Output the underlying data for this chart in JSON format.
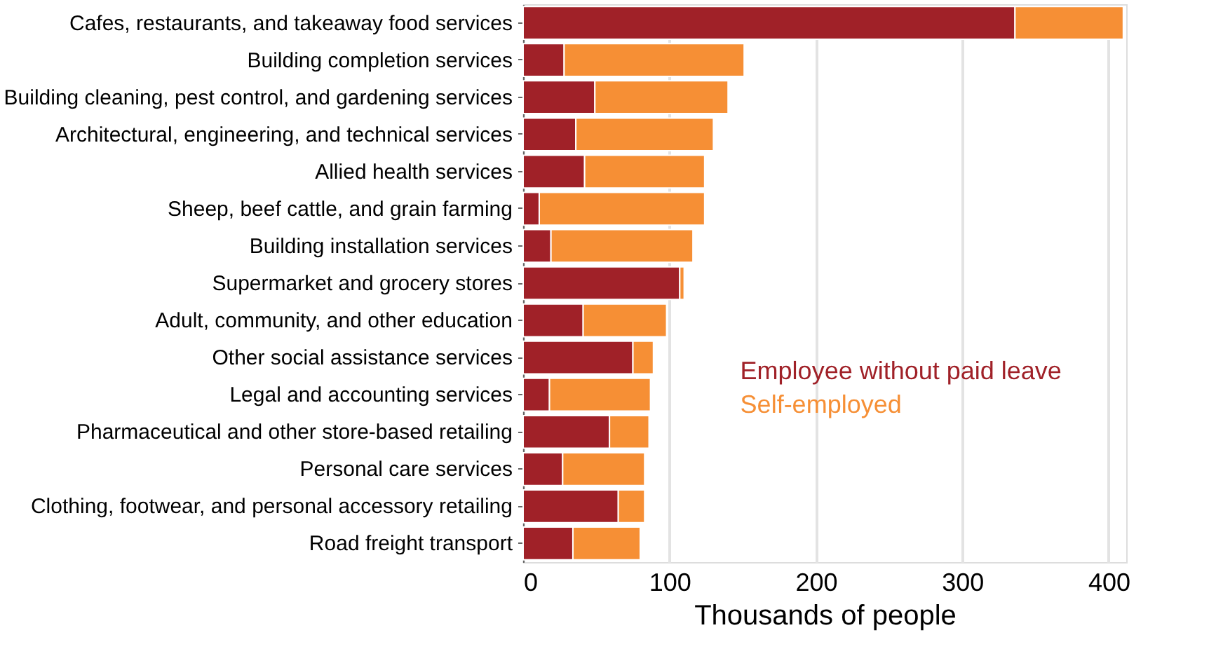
{
  "chart_data": {
    "type": "bar",
    "orientation": "horizontal",
    "stacked": true,
    "xlabel": "Thousands of people",
    "categories": [
      "Cafes, restaurants, and takeaway food services",
      "Building completion services",
      "Building cleaning, pest control, and gardening services",
      "Architectural, engineering, and technical services",
      "Allied health services",
      "Sheep, beef cattle, and grain farming",
      "Building installation services",
      "Supermarket and grocery stores",
      "Adult, community, and other education",
      "Other social assistance services",
      "Legal and accounting services",
      "Pharmaceutical and other store-based retailing",
      "Personal care services",
      "Clothing, footwear, and personal accessory retailing",
      "Road freight transport"
    ],
    "series": [
      {
        "name": "Employee without paid leave",
        "color": "#a02128",
        "values": [
          336,
          28,
          49,
          36,
          42,
          11,
          19,
          107,
          41,
          75,
          18,
          59,
          27,
          65,
          34
        ]
      },
      {
        "name": "Self-employed",
        "color": "#f68f35",
        "values": [
          74,
          123,
          91,
          94,
          82,
          113,
          97,
          3,
          57,
          14,
          69,
          27,
          56,
          18,
          46
        ]
      }
    ],
    "xlim": [
      0,
      412
    ],
    "xticks": [
      0,
      100,
      200,
      300,
      400
    ],
    "grid": "x",
    "legend": "right"
  }
}
